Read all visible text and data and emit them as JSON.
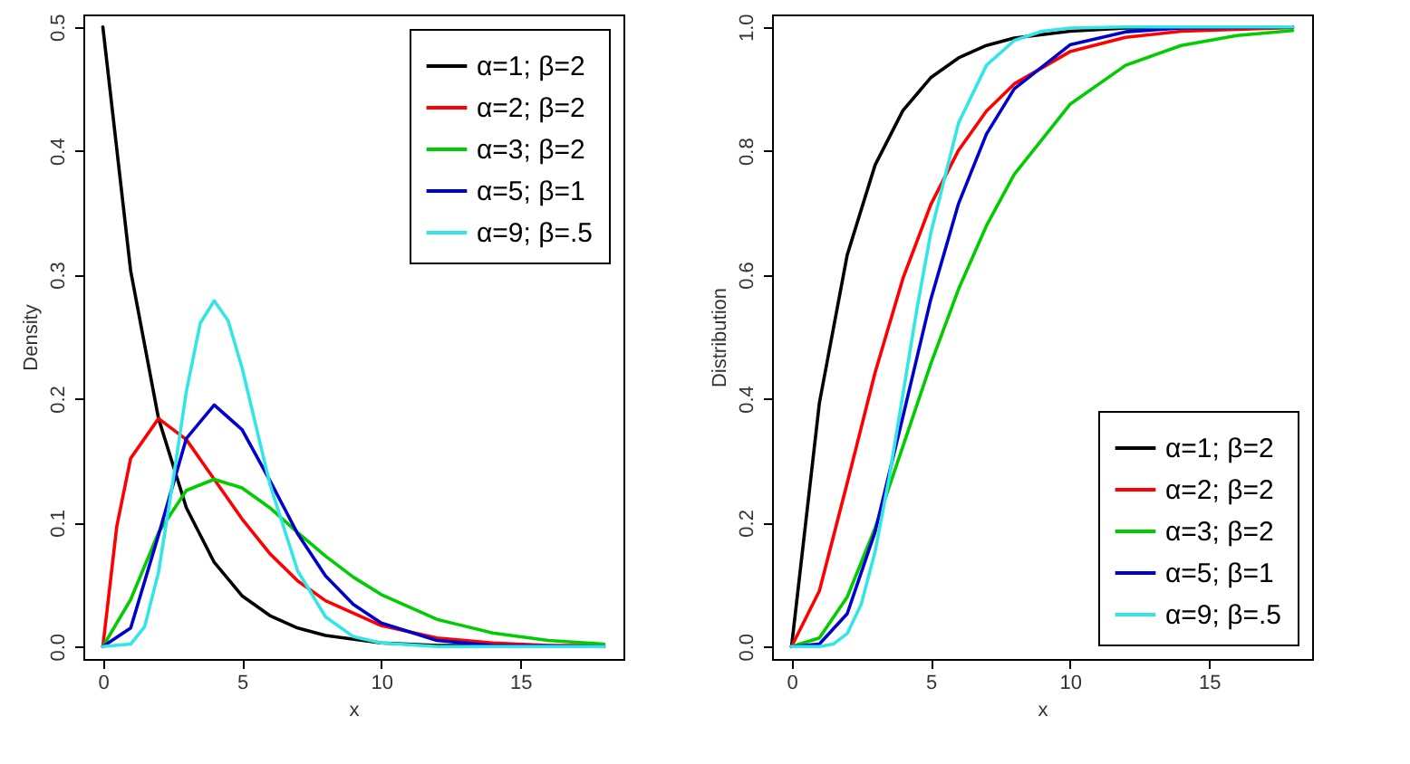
{
  "chart_data": [
    {
      "type": "line",
      "xlabel": "x",
      "ylabel": "Density",
      "xlim": [
        -0.7,
        18.7
      ],
      "ylim": [
        -0.01,
        0.51
      ],
      "xticks": [
        0,
        5,
        10,
        15
      ],
      "yticks": [
        {
          "value": 0,
          "label": "0.0"
        },
        {
          "value": 0.1,
          "label": "0.1"
        },
        {
          "value": 0.2,
          "label": "0.2"
        },
        {
          "value": 0.3,
          "label": "0.3"
        },
        {
          "value": 0.4,
          "label": "0.4"
        },
        {
          "value": 0.5,
          "label": "0.5"
        }
      ],
      "legend": "top right",
      "grid": false,
      "marker": "none",
      "line_style": "solid",
      "series": [
        {
          "name": "α=1; β=2",
          "color": "#000000",
          "x": [
            0,
            1,
            2,
            3,
            4,
            5,
            6,
            7,
            8,
            10,
            12,
            14,
            18
          ],
          "values": [
            0.5,
            0.303,
            0.184,
            0.112,
            0.068,
            0.041,
            0.025,
            0.015,
            0.009,
            0.003,
            0.001,
            0.001,
            0
          ]
        },
        {
          "name": "α=2; β=2",
          "color": "#ff0000",
          "x": [
            0,
            0.5,
            1,
            2,
            3,
            4,
            5,
            6,
            7,
            8,
            10,
            12,
            14,
            16,
            18
          ],
          "values": [
            0,
            0.097,
            0.152,
            0.184,
            0.167,
            0.135,
            0.103,
            0.075,
            0.053,
            0.037,
            0.017,
            0.007,
            0.003,
            0.001,
            0.001
          ]
        },
        {
          "name": "α=3; β=2",
          "color": "#00cc00",
          "x": [
            0,
            1,
            2,
            3,
            4,
            5,
            6,
            7,
            8,
            9,
            10,
            12,
            14,
            16,
            18
          ],
          "values": [
            0,
            0.038,
            0.092,
            0.126,
            0.135,
            0.128,
            0.112,
            0.092,
            0.073,
            0.056,
            0.042,
            0.022,
            0.011,
            0.005,
            0.002
          ]
        },
        {
          "name": "α=5; β=1",
          "color": "#0000cc",
          "x": [
            0,
            1,
            2,
            3,
            4,
            5,
            6,
            7,
            8,
            9,
            10,
            12,
            14,
            18
          ],
          "values": [
            0,
            0.015,
            0.09,
            0.168,
            0.195,
            0.175,
            0.134,
            0.091,
            0.057,
            0.034,
            0.019,
            0.005,
            0.001,
            0
          ]
        },
        {
          "name": "α=9; β=.5",
          "color": "#33e6e6",
          "x": [
            0,
            1,
            1.5,
            2,
            2.5,
            3,
            3.5,
            4,
            4.5,
            5,
            6,
            7,
            8,
            9,
            10,
            12,
            18
          ],
          "values": [
            0,
            0.002,
            0.016,
            0.06,
            0.131,
            0.206,
            0.261,
            0.279,
            0.263,
            0.225,
            0.131,
            0.061,
            0.024,
            0.008,
            0.003,
            0,
            0
          ]
        }
      ]
    },
    {
      "type": "line",
      "xlabel": "x",
      "ylabel": "Distribution",
      "xlim": [
        -0.7,
        18.7
      ],
      "ylim": [
        -0.02,
        1.02
      ],
      "xticks": [
        0,
        5,
        10,
        15
      ],
      "yticks": [
        {
          "value": 0,
          "label": "0.0"
        },
        {
          "value": 0.2,
          "label": "0.2"
        },
        {
          "value": 0.4,
          "label": "0.4"
        },
        {
          "value": 0.6,
          "label": "0.6"
        },
        {
          "value": 0.8,
          "label": "0.8"
        },
        {
          "value": 1,
          "label": "1.0"
        }
      ],
      "legend": "bottom right",
      "grid": false,
      "marker": "none",
      "line_style": "solid",
      "series": [
        {
          "name": "α=1; β=2",
          "color": "#000000",
          "x": [
            0,
            1,
            2,
            3,
            4,
            5,
            6,
            7,
            8,
            10,
            12,
            18
          ],
          "values": [
            0,
            0.393,
            0.632,
            0.777,
            0.865,
            0.918,
            0.95,
            0.97,
            0.982,
            0.993,
            0.998,
            1
          ]
        },
        {
          "name": "α=2; β=2",
          "color": "#ff0000",
          "x": [
            0,
            1,
            2,
            3,
            4,
            5,
            6,
            7,
            8,
            10,
            12,
            14,
            18
          ],
          "values": [
            0,
            0.09,
            0.264,
            0.442,
            0.594,
            0.713,
            0.801,
            0.864,
            0.908,
            0.96,
            0.983,
            0.993,
            0.999
          ]
        },
        {
          "name": "α=3; β=2",
          "color": "#00cc00",
          "x": [
            0,
            1,
            2,
            3,
            4,
            5,
            6,
            7,
            8,
            10,
            12,
            14,
            16,
            18
          ],
          "values": [
            0,
            0.014,
            0.08,
            0.191,
            0.323,
            0.456,
            0.577,
            0.679,
            0.762,
            0.875,
            0.938,
            0.97,
            0.986,
            0.994
          ]
        },
        {
          "name": "α=5; β=1",
          "color": "#0000cc",
          "x": [
            0,
            1,
            2,
            3,
            4,
            5,
            6,
            7,
            8,
            10,
            12,
            14,
            18
          ],
          "values": [
            0,
            0.004,
            0.053,
            0.185,
            0.371,
            0.56,
            0.715,
            0.827,
            0.9,
            0.971,
            0.992,
            0.998,
            1
          ]
        },
        {
          "name": "α=9; β=.5",
          "color": "#33e6e6",
          "x": [
            0,
            1,
            1.5,
            2,
            2.5,
            3,
            3.5,
            4,
            4.5,
            5,
            6,
            7,
            8,
            9,
            10,
            12,
            18
          ],
          "values": [
            0,
            0,
            0.004,
            0.021,
            0.068,
            0.153,
            0.271,
            0.407,
            0.544,
            0.667,
            0.845,
            0.938,
            0.978,
            0.993,
            0.998,
            1,
            1
          ]
        }
      ]
    }
  ]
}
